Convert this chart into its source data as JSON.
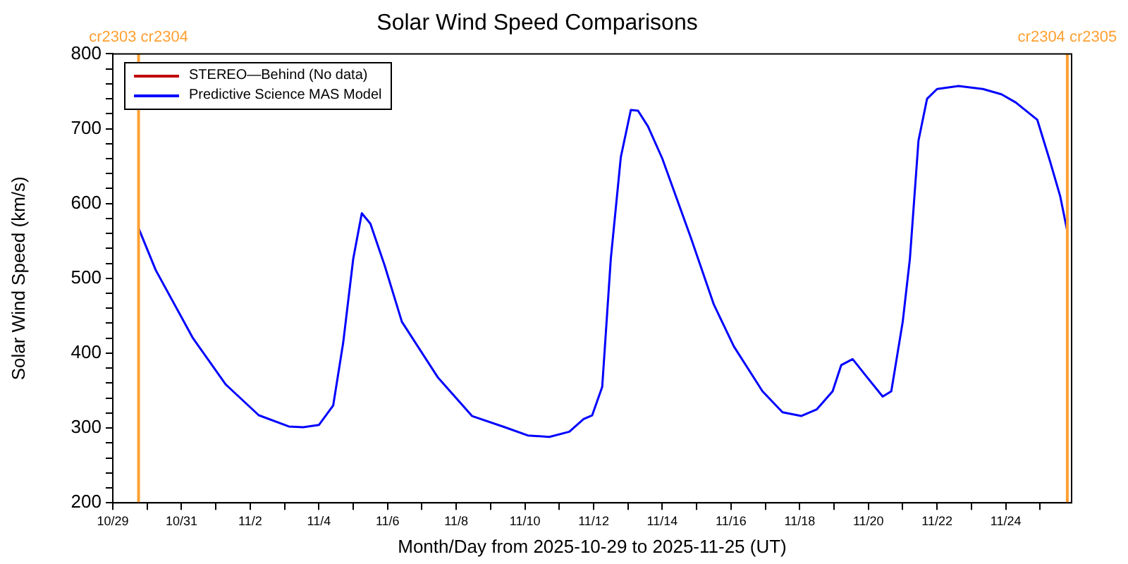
{
  "chart_data": {
    "type": "line",
    "title": "Solar Wind Speed Comparisons",
    "xlabel": "Month/Day from 2025-10-29 to 2025-11-25 (UT)",
    "ylabel": "Solar Wind Speed (km/s)",
    "xlim": [
      "2025-10-29",
      "2025-11-25T22:00"
    ],
    "ylim": [
      200,
      800
    ],
    "xticks": [
      {
        "value": "2025-10-29",
        "label": "10/29"
      },
      {
        "value": "2025-10-30",
        "label": null
      },
      {
        "value": "2025-10-31",
        "label": "10/31"
      },
      {
        "value": "2025-11-01",
        "label": null
      },
      {
        "value": "2025-11-02",
        "label": "11/2"
      },
      {
        "value": "2025-11-03",
        "label": null
      },
      {
        "value": "2025-11-04",
        "label": "11/4"
      },
      {
        "value": "2025-11-05",
        "label": null
      },
      {
        "value": "2025-11-06",
        "label": "11/6"
      },
      {
        "value": "2025-11-07",
        "label": null
      },
      {
        "value": "2025-11-08",
        "label": "11/8"
      },
      {
        "value": "2025-11-09",
        "label": null
      },
      {
        "value": "2025-11-10",
        "label": "11/10"
      },
      {
        "value": "2025-11-11",
        "label": null
      },
      {
        "value": "2025-11-12",
        "label": "11/12"
      },
      {
        "value": "2025-11-13",
        "label": null
      },
      {
        "value": "2025-11-14",
        "label": "11/14"
      },
      {
        "value": "2025-11-15",
        "label": null
      },
      {
        "value": "2025-11-16",
        "label": "11/16"
      },
      {
        "value": "2025-11-17",
        "label": null
      },
      {
        "value": "2025-11-18",
        "label": "11/18"
      },
      {
        "value": "2025-11-19",
        "label": null
      },
      {
        "value": "2025-11-20",
        "label": "11/20"
      },
      {
        "value": "2025-11-21",
        "label": null
      },
      {
        "value": "2025-11-22",
        "label": "11/22"
      },
      {
        "value": "2025-11-23",
        "label": null
      },
      {
        "value": "2025-11-24",
        "label": "11/24"
      },
      {
        "value": "2025-11-25",
        "label": null
      }
    ],
    "yticks": [
      200,
      {
        "value": 220,
        "label": null
      },
      {
        "value": 240,
        "label": null
      },
      {
        "value": 260,
        "label": null
      },
      {
        "value": 280,
        "label": null
      },
      300,
      {
        "value": 320,
        "label": null
      },
      {
        "value": 340,
        "label": null
      },
      {
        "value": 360,
        "label": null
      },
      {
        "value": 380,
        "label": null
      },
      400,
      {
        "value": 420,
        "label": null
      },
      {
        "value": 440,
        "label": null
      },
      {
        "value": 460,
        "label": null
      },
      {
        "value": 480,
        "label": null
      },
      500,
      {
        "value": 520,
        "label": null
      },
      {
        "value": 540,
        "label": null
      },
      {
        "value": 560,
        "label": null
      },
      {
        "value": 580,
        "label": null
      },
      600,
      {
        "value": 620,
        "label": null
      },
      {
        "value": 640,
        "label": null
      },
      {
        "value": 660,
        "label": null
      },
      {
        "value": 680,
        "label": null
      },
      700,
      {
        "value": 720,
        "label": null
      },
      {
        "value": 740,
        "label": null
      },
      {
        "value": 760,
        "label": null
      },
      {
        "value": 780,
        "label": null
      },
      800
    ],
    "grid": false,
    "legend": "top left",
    "marker": "none",
    "line_style": "solid",
    "ref_lines": [
      {
        "axis": "x",
        "value": "2025-10-29T18:00",
        "label": "cr2303 cr2304",
        "color": "#ffa033"
      },
      {
        "axis": "x",
        "value": "2025-11-25T19:00",
        "label": "cr2304 cr2305",
        "color": "#ffa033"
      }
    ],
    "series": [
      {
        "name": "STEREO—Behind (No data)",
        "color": "#c00000"
      },
      {
        "name": "Predictive Science MAS Model",
        "color": "#0000ff",
        "x": [
          "2025-10-29T18:00",
          "2025-10-30T06:00",
          "2025-10-31T08:00",
          "2025-11-01T07:00",
          "2025-11-02T06:00",
          "2025-11-03T03:00",
          "2025-11-03T13:00",
          "2025-11-04T00:00",
          "2025-11-04T10:00",
          "2025-11-04T17:00",
          "2025-11-05T00:00",
          "2025-11-05T06:00",
          "2025-11-05T12:00",
          "2025-11-05T22:00",
          "2025-11-06T10:00",
          "2025-11-07T11:00",
          "2025-11-08T11:00",
          "2025-11-09T10:00",
          "2025-11-10T02:00",
          "2025-11-10T17:00",
          "2025-11-11T07:00",
          "2025-11-11T17:00",
          "2025-11-11T23:00",
          "2025-11-12T06:00",
          "2025-11-12T12:00",
          "2025-11-12T19:00",
          "2025-11-13T02:00",
          "2025-11-13T07:00",
          "2025-11-13T14:00",
          "2025-11-14T00:00",
          "2025-11-14T20:00",
          "2025-11-15T12:00",
          "2025-11-16T02:00",
          "2025-11-16T22:00",
          "2025-11-17T12:00",
          "2025-11-18T01:00",
          "2025-11-18T12:00",
          "2025-11-18T23:00",
          "2025-11-19T05:00",
          "2025-11-19T13:00",
          "2025-11-19T23:00",
          "2025-11-20T10:00",
          "2025-11-20T16:00",
          "2025-11-21T00:00",
          "2025-11-21T05:00",
          "2025-11-21T11:00",
          "2025-11-21T17:00",
          "2025-11-22T00:00",
          "2025-11-22T15:00",
          "2025-11-23T08:00",
          "2025-11-23T21:00",
          "2025-11-24T07:00",
          "2025-11-24T22:00",
          "2025-11-25T07:00",
          "2025-11-25T14:00",
          "2025-11-25T19:00"
        ],
        "values": [
          567,
          511,
          420,
          358,
          317,
          302,
          301,
          304,
          330,
          414,
          526,
          587,
          573,
          517,
          442,
          368,
          316,
          301,
          290,
          288,
          295,
          312,
          317,
          355,
          526,
          662,
          725,
          724,
          703,
          660,
          554,
          465,
          409,
          349,
          321,
          316,
          325,
          349,
          384,
          392,
          368,
          342,
          349,
          442,
          526,
          684,
          740,
          753,
          757,
          753,
          746,
          735,
          712,
          656,
          610,
          563
        ]
      }
    ]
  }
}
